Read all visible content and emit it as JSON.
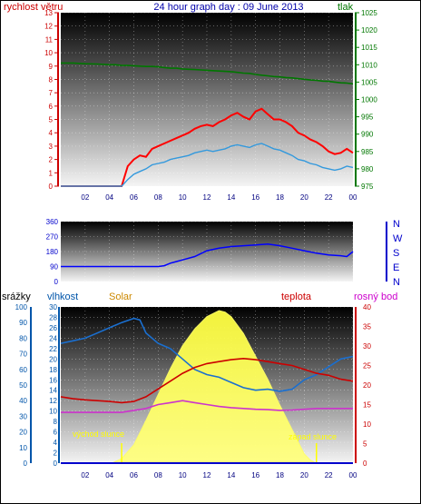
{
  "header": {
    "title": "24 hour graph day : 09 June 2013",
    "left_label": "rychlost větru",
    "right_label": "tlak"
  },
  "colors": {
    "wind": "#ff0000",
    "wind_avg": "#3399dd",
    "pressure": "#007700",
    "direction": "#0000ff",
    "humidity": "#1a6fd0",
    "solar": "#ffff33",
    "temperature": "#cc0000",
    "dewpoint": "#cc33cc",
    "rain": "#0000cc",
    "axis_left": "#cc0000",
    "axis_right": "#007700",
    "axis_hum": "#0055aa",
    "axis_dir": "#0000cc",
    "axis_solar": "#cc8800",
    "axis_temp": "#cc0000",
    "axis_dew": "#cc00cc"
  },
  "time_ticks": [
    "02",
    "04",
    "06",
    "08",
    "10",
    "12",
    "14",
    "16",
    "18",
    "20",
    "22",
    "00"
  ],
  "direction_labels": [
    "N",
    "W",
    "S",
    "E",
    "N"
  ],
  "legend3": {
    "rain": "srážky",
    "humidity": "vlhkost",
    "solar": "Solar",
    "temperature": "teplota",
    "dewpoint": "rosný bod"
  },
  "annotations": {
    "sunrise": "východ slunce",
    "sunset": "západ slunce"
  },
  "chart_data": [
    {
      "type": "line",
      "title": "24 hour graph day : 09 June 2013",
      "xlabel": "",
      "x": [
        0,
        1,
        2,
        3,
        4,
        4.5,
        5,
        5.5,
        6,
        6.5,
        7,
        7.5,
        8,
        8.5,
        9,
        9.5,
        10,
        10.5,
        11,
        11.5,
        12,
        12.5,
        13,
        13.5,
        14,
        14.5,
        15,
        15.5,
        16,
        16.5,
        17,
        17.5,
        18,
        18.5,
        19,
        19.5,
        20,
        20.5,
        21,
        21.5,
        22,
        22.5,
        23,
        23.5,
        24
      ],
      "xlim": [
        0,
        24
      ],
      "axes": {
        "left": {
          "label": "rychlost větru",
          "range": [
            0,
            13
          ],
          "ticks": [
            0,
            1,
            2,
            3,
            4,
            5,
            6,
            7,
            8,
            9,
            10,
            11,
            12,
            13
          ]
        },
        "right": {
          "label": "tlak",
          "range": [
            975,
            1025
          ],
          "ticks": [
            975,
            980,
            985,
            990,
            995,
            1000,
            1005,
            1010,
            1015,
            1020,
            1025
          ]
        }
      },
      "series": [
        {
          "name": "rychlost větru",
          "axis": "left",
          "values": [
            0,
            0,
            0,
            0,
            0,
            0,
            0,
            1.5,
            2.0,
            2.3,
            2.2,
            2.8,
            3.0,
            3.2,
            3.4,
            3.6,
            3.8,
            4.0,
            4.3,
            4.5,
            4.6,
            4.5,
            4.8,
            5.0,
            5.3,
            5.5,
            5.2,
            5.0,
            5.6,
            5.8,
            5.4,
            5.0,
            5.0,
            4.8,
            4.5,
            4.0,
            3.8,
            3.5,
            3.3,
            3.0,
            2.6,
            2.4,
            2.5,
            2.8,
            2.5
          ]
        },
        {
          "axis": "left",
          "values": [
            0,
            0,
            0,
            0,
            0,
            0,
            0,
            0.5,
            0.9,
            1.1,
            1.3,
            1.6,
            1.7,
            1.8,
            2.0,
            2.1,
            2.2,
            2.3,
            2.5,
            2.6,
            2.7,
            2.6,
            2.7,
            2.8,
            3.0,
            3.1,
            3.0,
            2.9,
            3.1,
            3.2,
            3.0,
            2.8,
            2.7,
            2.5,
            2.3,
            2.0,
            1.9,
            1.7,
            1.6,
            1.4,
            1.3,
            1.2,
            1.3,
            1.5,
            1.4
          ]
        },
        {
          "name": "tlak",
          "axis": "right",
          "values": [
            1010.5,
            1010.5,
            1010.3,
            1010.2,
            1010,
            1010,
            1009.8,
            1009.8,
            1009.7,
            1009.6,
            1009.5,
            1009.5,
            1009.4,
            1009.2,
            1009,
            1009,
            1008.8,
            1008.7,
            1008.6,
            1008.5,
            1008.4,
            1008.3,
            1008.2,
            1008.1,
            1008,
            1007.8,
            1007.6,
            1007.5,
            1007.2,
            1007,
            1006.8,
            1006.6,
            1006.5,
            1006.3,
            1006.2,
            1006,
            1005.8,
            1005.6,
            1005.5,
            1005.3,
            1005.2,
            1005,
            1004.8,
            1004.7,
            1004.5
          ]
        }
      ]
    },
    {
      "type": "line",
      "xlim": [
        0,
        24
      ],
      "axes": {
        "left": {
          "range": [
            0,
            360
          ],
          "ticks": [
            0,
            90,
            180,
            270,
            360
          ]
        },
        "right": {
          "ticks": [
            "N",
            "E",
            "S",
            "W",
            "N"
          ]
        }
      },
      "series": [
        {
          "name": "wind direction",
          "x": [
            0,
            2,
            4,
            6,
            8,
            8.5,
            9,
            9.5,
            10,
            11,
            12,
            13,
            14,
            15,
            16,
            17,
            18,
            19,
            20,
            21,
            22,
            23,
            23.5,
            24
          ],
          "values": [
            90,
            90,
            90,
            90,
            90,
            95,
            110,
            120,
            130,
            150,
            185,
            200,
            210,
            215,
            220,
            225,
            215,
            200,
            185,
            170,
            160,
            155,
            150,
            180
          ]
        }
      ]
    },
    {
      "type": "area",
      "xlim": [
        0,
        24
      ],
      "axes": {
        "left": {
          "label": "srážky",
          "range": [
            0,
            100
          ],
          "ticks": [
            0,
            10,
            20,
            30,
            40,
            50,
            60,
            70,
            80,
            90,
            100
          ]
        },
        "left2": {
          "label": "vlhkost",
          "range": [
            0,
            30
          ],
          "ticks": [
            0,
            2,
            4,
            6,
            8,
            10,
            12,
            14,
            16,
            18,
            20,
            22,
            24,
            26,
            28,
            30
          ]
        },
        "right": {
          "label": "teplota",
          "range": [
            0,
            40
          ],
          "ticks": [
            0,
            5,
            10,
            15,
            20,
            25,
            30,
            35,
            40
          ]
        }
      },
      "series": [
        {
          "name": "vlhkost",
          "axis": "left2",
          "x": [
            0,
            1,
            2,
            3,
            4,
            5,
            6,
            6.5,
            7,
            8,
            9,
            10,
            11,
            12,
            13,
            14,
            15,
            16,
            17,
            18,
            19,
            20,
            21,
            22,
            23,
            24
          ],
          "values": [
            23,
            23.5,
            24,
            25,
            26,
            27,
            27.8,
            27.5,
            25,
            23,
            22,
            20,
            18,
            17,
            16.5,
            15.5,
            14.5,
            14,
            14.2,
            13.8,
            14.2,
            16,
            17,
            18.5,
            20,
            20.5
          ]
        },
        {
          "name": "Solar",
          "x": [
            4.2,
            5,
            6,
            7,
            8,
            9,
            10,
            11,
            12,
            13,
            13.5,
            14,
            15,
            16,
            17,
            18,
            18.5,
            19,
            19.5,
            20,
            20.5,
            21
          ],
          "values": [
            0,
            0.03,
            0.12,
            0.28,
            0.45,
            0.62,
            0.77,
            0.88,
            0.96,
            1.0,
            0.99,
            0.96,
            0.85,
            0.7,
            0.55,
            0.38,
            0.3,
            0.22,
            0.14,
            0.06,
            0.02,
            0
          ]
        },
        {
          "name": "teplota",
          "axis": "right",
          "x": [
            0,
            1,
            2,
            3,
            4,
            5,
            6,
            7,
            8,
            9,
            10,
            11,
            12,
            13,
            14,
            15,
            16,
            17,
            18,
            19,
            20,
            21,
            22,
            23,
            24
          ],
          "values": [
            17,
            16.5,
            16.2,
            16,
            15.8,
            15.5,
            15.8,
            17,
            19,
            21,
            23,
            24.5,
            25.5,
            26,
            26.5,
            26.8,
            26.5,
            26,
            25.5,
            25,
            24,
            23,
            22.5,
            21.5,
            21
          ]
        },
        {
          "name": "rosný bod",
          "axis": "right",
          "x": [
            0,
            1,
            2,
            3,
            4,
            5,
            6,
            7,
            8,
            9,
            10,
            11,
            12,
            13,
            14,
            15,
            16,
            17,
            18,
            19,
            20,
            21,
            22,
            23,
            24
          ],
          "values": [
            13,
            13,
            13,
            13,
            13,
            13,
            13.5,
            14,
            15,
            15.5,
            16,
            15.5,
            15,
            14.5,
            14.2,
            14,
            13.8,
            13.7,
            13.5,
            13.6,
            13.8,
            14,
            14,
            14,
            14
          ]
        },
        {
          "name": "srážky",
          "axis": "left",
          "x": [
            0,
            24
          ],
          "values": [
            0,
            0
          ]
        }
      ]
    }
  ]
}
